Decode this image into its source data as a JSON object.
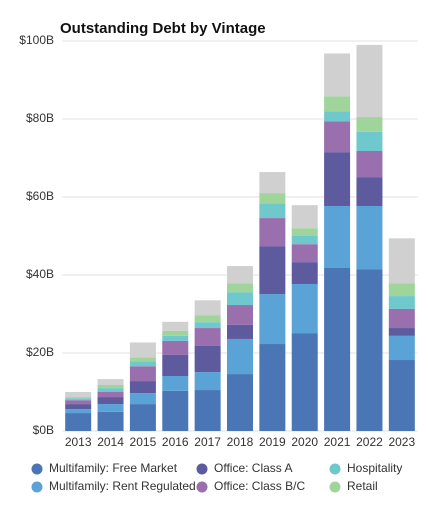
{
  "chart_data": {
    "type": "stacked_bar",
    "title": "Outstanding Debt by Vintage",
    "categories": [
      "2013",
      "2014",
      "2015",
      "2016",
      "2017",
      "2018",
      "2019",
      "2020",
      "2021",
      "2022",
      "2023"
    ],
    "series": [
      {
        "name": "Multifamily: Free Market",
        "color": "#4a76b5",
        "values": [
          4.6,
          4.9,
          6.9,
          10.3,
          10.5,
          14.6,
          22.3,
          25.1,
          41.8,
          41.5,
          18.2
        ]
      },
      {
        "name": "Multifamily: Rent Regulated",
        "color": "#5aa3d6",
        "values": [
          1,
          2,
          2.8,
          3.8,
          4.6,
          9,
          12.8,
          12.6,
          15.9,
          16.2,
          6.2
        ]
      },
      {
        "name": "Office: Class A",
        "color": "#5d5a9e",
        "values": [
          1.3,
          1.8,
          3.1,
          5.4,
          6.7,
          3.6,
          12.3,
          5.6,
          13.8,
          7.4,
          2
        ]
      },
      {
        "name": "Office: Class B/C",
        "color": "#9a6fae",
        "values": [
          1,
          1.3,
          3.8,
          3.6,
          4.6,
          5.1,
          7.2,
          4.6,
          7.9,
          6.7,
          4.9
        ]
      },
      {
        "name": "Hospitality",
        "color": "#6ec8cc",
        "values": [
          0.5,
          1,
          1.3,
          1.3,
          1.5,
          3.3,
          3.8,
          2.1,
          2.6,
          4.9,
          3.3
        ]
      },
      {
        "name": "Retail",
        "color": "#9fd49a",
        "values": [
          0.3,
          0.8,
          1,
          1.3,
          1.8,
          2.3,
          2.6,
          2,
          3.8,
          3.8,
          3.3
        ]
      },
      {
        "color": "#d0d0d0",
        "values": [
          1.3,
          1.5,
          3.8,
          2.3,
          3.8,
          4.4,
          5.4,
          5.9,
          11,
          18.5,
          11.5
        ]
      }
    ],
    "ylim": [
      0,
      100
    ],
    "yticks": [
      {
        "value": 0,
        "label": "$0B"
      },
      {
        "value": 20,
        "label": "$20B"
      },
      {
        "value": 40,
        "label": "$40B"
      },
      {
        "value": 60,
        "label": "$60B"
      },
      {
        "value": 80,
        "label": "$80B"
      },
      {
        "value": 100,
        "label": "$100B"
      }
    ],
    "grid": true
  }
}
